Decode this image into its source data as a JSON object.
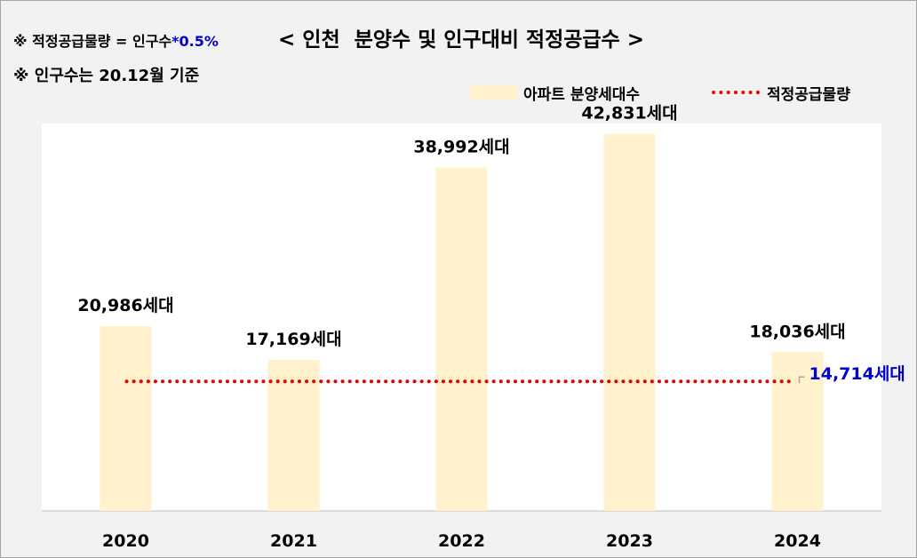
{
  "header": {
    "formula_prefix": "※ 적정공급물량 = 인구수",
    "formula_suffix": "*0.5%",
    "title": "< 인천  분양수 및 인구대비 적정공급수 >",
    "basis_note": "※ 인구수는 20.12월 기준"
  },
  "colors": {
    "bar": "#fff2cc",
    "line": "#e60000",
    "line_label": "#0000cc",
    "axis": "#bfbfbf"
  },
  "chart_data": {
    "type": "bar",
    "categories": [
      "2020",
      "2021",
      "2022",
      "2023",
      "2024"
    ],
    "series": [
      {
        "name": "아파트 분양세대수",
        "type": "bar",
        "values": [
          20986,
          17169,
          38992,
          42831,
          18036
        ],
        "labels": [
          "20,986세대",
          "17,169세대",
          "38,992세대",
          "42,831세대",
          "18,036세대"
        ]
      },
      {
        "name": "적정공급물량",
        "type": "line",
        "style": "dotted",
        "values": [
          14714,
          14714,
          14714,
          14714,
          14714
        ],
        "label": "14,714세대"
      }
    ],
    "ylim": [
      0,
      44000
    ],
    "grid": false,
    "legend": "top-right"
  }
}
